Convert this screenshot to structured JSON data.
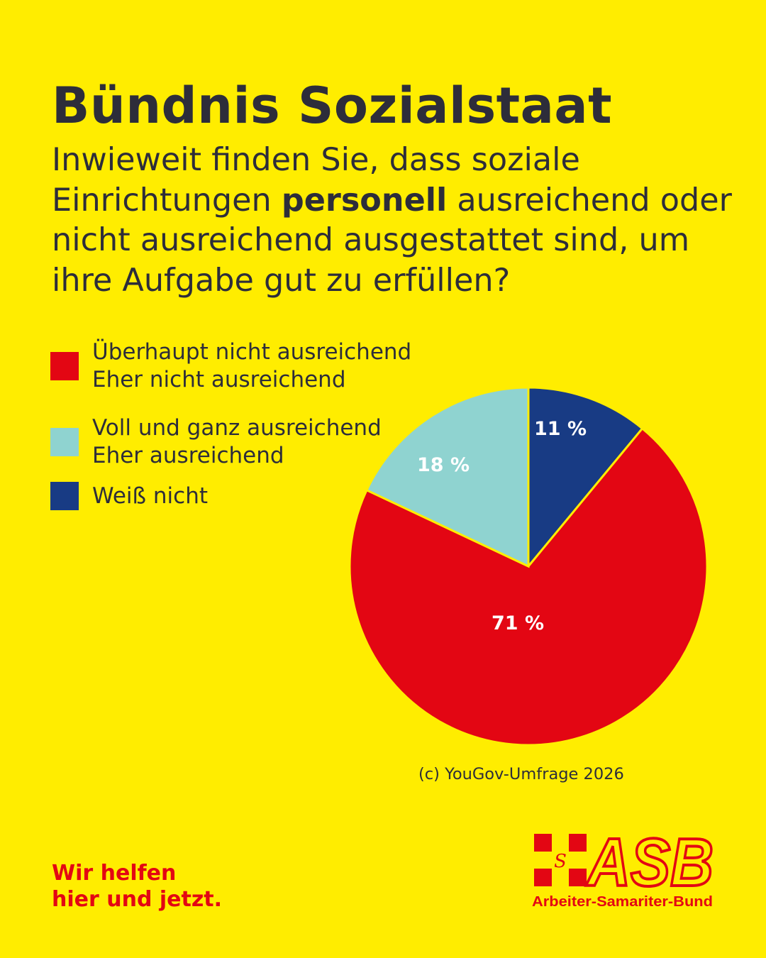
{
  "title": "Bündnis Sozialstaat",
  "subtitle": {
    "part1": "Inwieweit finden Sie, dass soziale Einrichtungen ",
    "bold": "personell",
    "part2": " ausreichend oder nicht ausreichend ausgestattet sind, um ihre Aufgabe gut zu erfüllen?"
  },
  "chart_data": {
    "type": "pie",
    "legend_placement": "top-left",
    "slices": [
      {
        "legend": [
          "Weiß nicht"
        ],
        "value": 11,
        "label": "11 %",
        "color": "#183B84"
      },
      {
        "legend": [
          "Überhaupt nicht ausreichend",
          "Eher nicht ausreichend"
        ],
        "value": 71,
        "label": "71 %",
        "color": "#E30613"
      },
      {
        "legend": [
          "Voll und ganz ausreichend",
          "Eher ausreichend"
        ],
        "value": 18,
        "label": "18 %",
        "color": "#8FD3D0"
      }
    ]
  },
  "source": "(c) YouGov-Umfrage 2026",
  "slogan": {
    "line1": "Wir helfen",
    "line2": "hier und jetzt."
  },
  "logo": {
    "mark": "ASB",
    "letter": "S",
    "name": "Arbeiter-Samariter-Bund"
  },
  "colors": {
    "background": "#FFED00",
    "accent": "#E30613",
    "text": "#2D2D3A"
  }
}
